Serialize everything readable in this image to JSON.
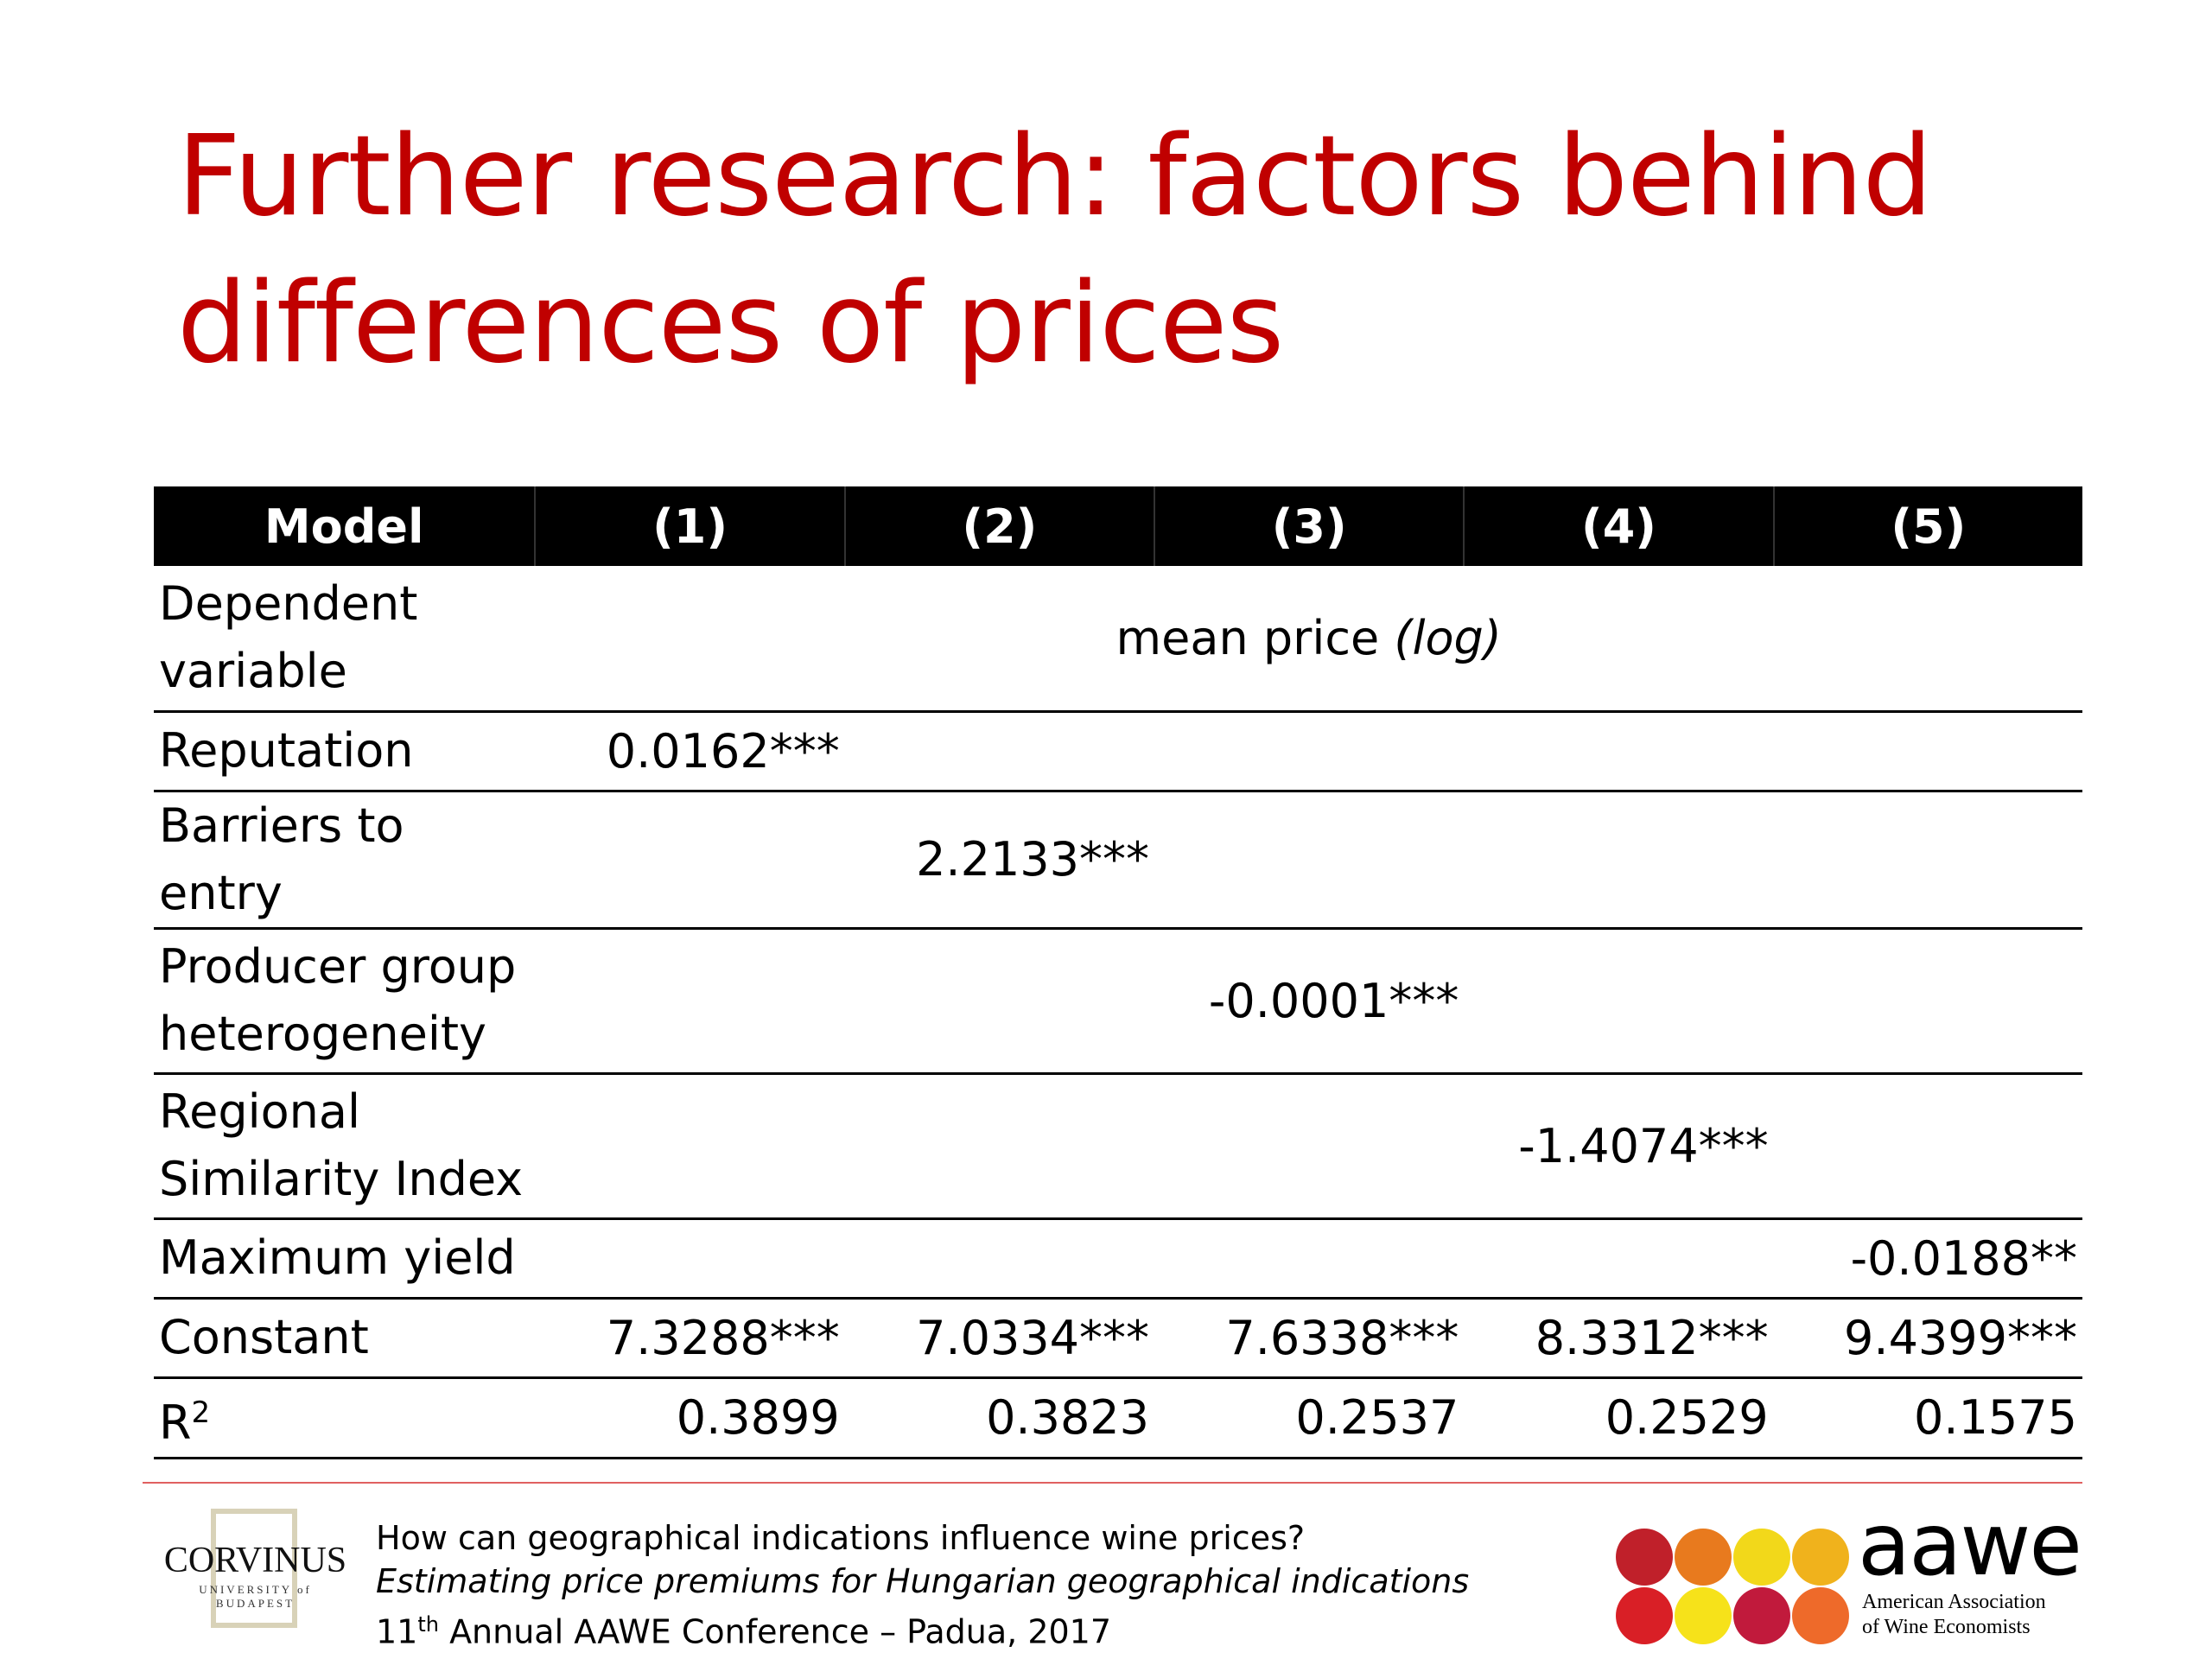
{
  "title": "Further research: factors behind differences of prices",
  "table": {
    "header": [
      "Model",
      "(1)",
      "(2)",
      "(3)",
      "(4)",
      "(5)"
    ],
    "dependent": {
      "label": "Dependent variable",
      "value": "mean price",
      "value_italic": "(log)"
    },
    "rows": [
      {
        "label": "Reputation",
        "values": [
          "0.0162***",
          "",
          "",
          "",
          ""
        ]
      },
      {
        "label": "Barriers to entry",
        "values": [
          "",
          "2.2133***",
          "",
          "",
          ""
        ]
      },
      {
        "label": "Producer group heterogeneity",
        "values": [
          "",
          "",
          "-0.0001***",
          "",
          ""
        ]
      },
      {
        "label": "Regional Similarity Index",
        "values": [
          "",
          "",
          "",
          "-1.4074***",
          ""
        ]
      },
      {
        "label": "Maximum yield",
        "values": [
          "",
          "",
          "",
          "",
          "-0.0188**"
        ]
      },
      {
        "label": "Constant",
        "values": [
          "7.3288***",
          "7.0334***",
          "7.6338***",
          "8.3312***",
          "9.4399***"
        ]
      },
      {
        "label": "R",
        "label_sup": "2",
        "values": [
          "0.3899",
          "0.3823",
          "0.2537",
          "0.2529",
          "0.1575"
        ]
      }
    ]
  },
  "footer": {
    "line1": "How can geographical indications influence wine prices?",
    "line2": "Estimating price premiums for Hungarian geographical indications",
    "line3_pre": "11",
    "line3_sup": "th",
    "line3_post": " Annual AAWE Conference – Padua, 2017"
  },
  "logos": {
    "corvinus": {
      "name": "CORVINUS",
      "sub1": "UNIVERSITY of",
      "sub2": "BUDAPEST"
    },
    "aawe": {
      "wordmark": "aawe",
      "tagline1": "American Association",
      "tagline2": "of Wine Economists",
      "dot_colors": [
        "#c0202a",
        "#e87a1e",
        "#f2d81a",
        "#f0b21c",
        "#d91f26",
        "#f6e21a",
        "#c11a3c",
        "#ee6a2a"
      ]
    }
  },
  "colors": {
    "title": "#c00000",
    "footer_rule": "#e06060",
    "header_bg": "#000000"
  }
}
